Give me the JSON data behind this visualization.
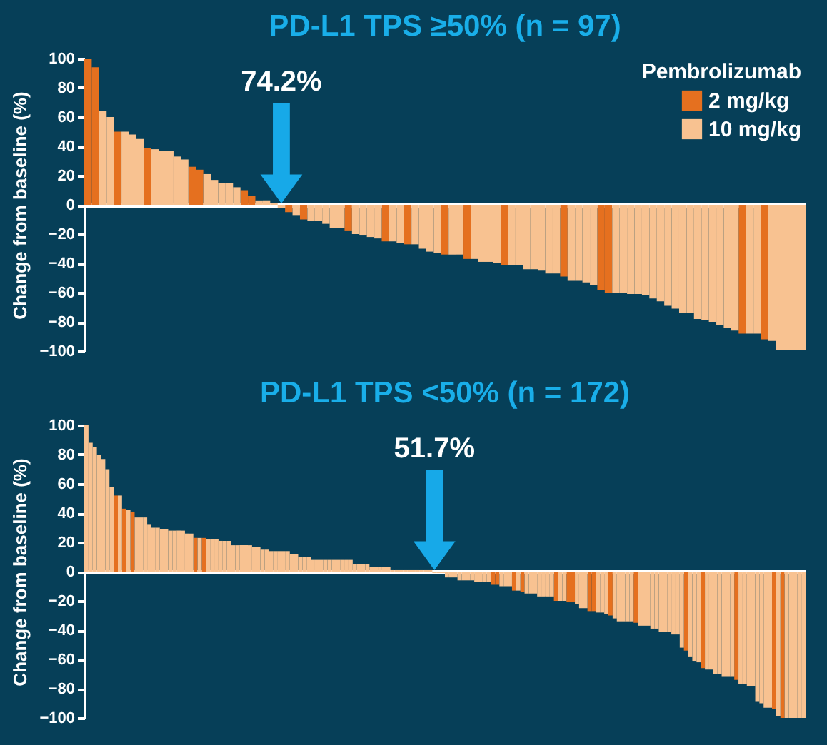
{
  "chart_data": [
    {
      "type": "bar",
      "title": "PD-L1 TPS ≥50% (n = 97)",
      "ylabel": "Change from baseline (%)",
      "ylim": [
        -100,
        100
      ],
      "yticks": [
        -100,
        -80,
        -60,
        -40,
        -20,
        0,
        20,
        40,
        60,
        80,
        100
      ],
      "legend": "top right",
      "legend_title": "Pembrolizumab",
      "annotations": [
        "74.2%"
      ],
      "categories": [
        null,
        null,
        null,
        null,
        null,
        null,
        null,
        null,
        null,
        null,
        null,
        null,
        null,
        null,
        null,
        null,
        null,
        null,
        null,
        null,
        null,
        null,
        null,
        null,
        null,
        null,
        null,
        null,
        null,
        null,
        null,
        null,
        null,
        null,
        null,
        null,
        null,
        null,
        null,
        null,
        null,
        null,
        null,
        null,
        null,
        null,
        null,
        null,
        null,
        null,
        null,
        null,
        null,
        null,
        null,
        null,
        null,
        null,
        null,
        null,
        null,
        null,
        null,
        null,
        null,
        null,
        null,
        null,
        null,
        null,
        null,
        null,
        null,
        null,
        null,
        null,
        null,
        null,
        null,
        null,
        null,
        null,
        null,
        null,
        null,
        null,
        null,
        null,
        null,
        null,
        null,
        null,
        null,
        null,
        null,
        null,
        null
      ],
      "series": [
        {
          "name": "2 mg/kg",
          "color": "#e5701f",
          "values": [
            100,
            94,
            null,
            null,
            50,
            null,
            null,
            null,
            39,
            null,
            null,
            null,
            null,
            null,
            26,
            24,
            null,
            null,
            null,
            null,
            null,
            10,
            6,
            null,
            null,
            null,
            null,
            -5,
            null,
            -10,
            null,
            null,
            null,
            null,
            null,
            -18,
            null,
            null,
            null,
            null,
            -25,
            null,
            null,
            -27,
            null,
            null,
            null,
            null,
            -34,
            null,
            null,
            -37,
            null,
            null,
            null,
            null,
            -41,
            null,
            null,
            null,
            null,
            null,
            null,
            null,
            -49,
            null,
            null,
            null,
            null,
            -58,
            -60,
            null,
            null,
            null,
            null,
            null,
            null,
            null,
            null,
            null,
            null,
            null,
            null,
            null,
            null,
            null,
            null,
            null,
            -88,
            null,
            null,
            -92,
            null,
            null,
            null,
            null,
            null
          ]
        },
        {
          "name": "10 mg/kg",
          "color": "#f8c291",
          "values": [
            null,
            null,
            64,
            60,
            null,
            50,
            48,
            45,
            null,
            38,
            37,
            37,
            33,
            31,
            null,
            null,
            21,
            17,
            15,
            15,
            12,
            null,
            null,
            3,
            3,
            1,
            -2,
            null,
            -7,
            null,
            -11,
            -11,
            -13,
            -16,
            -16,
            null,
            -20,
            -21,
            -22,
            -23,
            null,
            -25,
            -26,
            null,
            -27,
            -30,
            -32,
            -33,
            null,
            -34,
            -34,
            null,
            -37,
            -39,
            -39,
            -40,
            null,
            -41,
            -41,
            -44,
            -44,
            -45,
            -47,
            -47,
            null,
            -52,
            -52,
            -53,
            -55,
            null,
            null,
            -60,
            -60,
            -61,
            -61,
            -62,
            -64,
            -66,
            -69,
            -71,
            -74,
            -74,
            -78,
            -79,
            -80,
            -82,
            -84,
            -86,
            null,
            -88,
            -88,
            null,
            -93,
            -99,
            -99,
            -99,
            -99
          ]
        }
      ]
    },
    {
      "type": "bar",
      "title": "PD-L1 TPS <50% (n = 172)",
      "ylabel": "Change from baseline (%)",
      "ylim": [
        -100,
        100
      ],
      "yticks": [
        -100,
        -80,
        -60,
        -40,
        -20,
        0,
        20,
        40,
        60,
        80,
        100
      ],
      "annotations": [
        "51.7%"
      ],
      "categories": [
        null,
        null,
        null,
        null,
        null,
        null,
        null,
        null,
        null,
        null,
        null,
        null,
        null,
        null,
        null,
        null,
        null,
        null,
        null,
        null,
        null,
        null,
        null,
        null,
        null,
        null,
        null,
        null,
        null,
        null,
        null,
        null,
        null,
        null,
        null,
        null,
        null,
        null,
        null,
        null,
        null,
        null,
        null,
        null,
        null,
        null,
        null,
        null,
        null,
        null,
        null,
        null,
        null,
        null,
        null,
        null,
        null,
        null,
        null,
        null,
        null,
        null,
        null,
        null,
        null,
        null,
        null,
        null,
        null,
        null,
        null,
        null,
        null,
        null,
        null,
        null,
        null,
        null,
        null,
        null,
        null,
        null,
        null,
        null,
        null,
        null,
        null,
        null,
        null,
        null,
        null,
        null,
        null,
        null,
        null,
        null,
        null,
        null,
        null,
        null,
        null,
        null,
        null,
        null,
        null,
        null,
        null,
        null,
        null,
        null,
        null,
        null,
        null,
        null,
        null,
        null,
        null,
        null,
        null,
        null,
        null,
        null,
        null,
        null,
        null,
        null,
        null,
        null,
        null,
        null,
        null,
        null,
        null,
        null,
        null,
        null,
        null,
        null,
        null,
        null,
        null,
        null,
        null,
        null,
        null,
        null,
        null,
        null,
        null,
        null,
        null,
        null,
        null,
        null,
        null,
        null,
        null,
        null,
        null,
        null,
        null,
        null,
        null,
        null,
        null,
        null,
        null,
        null,
        null,
        null,
        null,
        null
      ],
      "series": [
        {
          "color": "#e5701f",
          "values": [
            null,
            null,
            null,
            null,
            null,
            null,
            null,
            52,
            null,
            43,
            null,
            41,
            null,
            null,
            null,
            null,
            null,
            null,
            null,
            null,
            null,
            null,
            null,
            null,
            null,
            null,
            23,
            null,
            23,
            null,
            null,
            null,
            null,
            null,
            null,
            null,
            null,
            null,
            null,
            null,
            null,
            null,
            null,
            null,
            null,
            null,
            null,
            null,
            null,
            null,
            null,
            null,
            null,
            null,
            null,
            null,
            null,
            null,
            null,
            null,
            null,
            null,
            null,
            null,
            null,
            null,
            null,
            null,
            null,
            null,
            null,
            null,
            null,
            null,
            null,
            null,
            null,
            null,
            null,
            null,
            null,
            null,
            null,
            null,
            null,
            null,
            null,
            null,
            null,
            null,
            null,
            null,
            null,
            null,
            null,
            null,
            null,
            -9,
            -9,
            null,
            null,
            null,
            -13,
            null,
            -14,
            null,
            null,
            null,
            null,
            null,
            null,
            null,
            -20,
            null,
            null,
            -21,
            -21,
            null,
            null,
            null,
            -27,
            -27,
            null,
            null,
            null,
            -30,
            null,
            null,
            null,
            null,
            null,
            -35,
            null,
            null,
            null,
            null,
            null,
            null,
            null,
            null,
            null,
            null,
            null,
            -54,
            null,
            null,
            null,
            -66,
            null,
            null,
            null,
            null,
            null,
            null,
            null,
            -74,
            null,
            null,
            null,
            null,
            null,
            null,
            null,
            null,
            -94,
            null,
            -100,
            null,
            null,
            null,
            null,
            null
          ]
        },
        {
          "color": "#f8c291",
          "values": [
            100,
            88,
            85,
            80,
            77,
            70,
            58,
            null,
            52,
            null,
            42,
            null,
            37,
            37,
            37,
            32,
            30,
            30,
            29,
            29,
            28,
            28,
            28,
            28,
            26,
            26,
            null,
            23,
            null,
            22,
            22,
            22,
            21,
            21,
            21,
            18,
            18,
            18,
            18,
            18,
            17,
            17,
            15,
            15,
            14,
            14,
            14,
            14,
            14,
            12,
            12,
            10,
            10,
            10,
            8,
            8,
            8,
            8,
            8,
            8,
            8,
            8,
            8,
            8,
            5,
            5,
            5,
            5,
            3,
            3,
            3,
            3,
            3,
            1,
            1,
            1,
            1,
            1,
            1,
            1,
            1,
            1,
            1,
            -1,
            -1,
            -1,
            -4,
            -4,
            -4,
            -6,
            -6,
            -6,
            -6,
            -7,
            -7,
            -7,
            -7,
            null,
            null,
            -10,
            -10,
            -10,
            null,
            -13,
            null,
            -15,
            -15,
            -15,
            -17,
            -17,
            -17,
            -17,
            null,
            -20,
            -20,
            null,
            null,
            -22,
            -25,
            -25,
            null,
            null,
            -28,
            -28,
            -29,
            null,
            -32,
            -34,
            -34,
            -34,
            -34,
            null,
            -37,
            -37,
            -37,
            -39,
            -39,
            -41,
            -41,
            -41,
            -43,
            -43,
            -52,
            null,
            -58,
            -61,
            -62,
            null,
            -67,
            -67,
            -70,
            -70,
            -72,
            -72,
            -72,
            null,
            -77,
            -77,
            -78,
            -78,
            -89,
            -90,
            -93,
            -93,
            null,
            -99,
            null,
            -100,
            -100,
            -100,
            -100,
            -100
          ]
        }
      ]
    }
  ]
}
